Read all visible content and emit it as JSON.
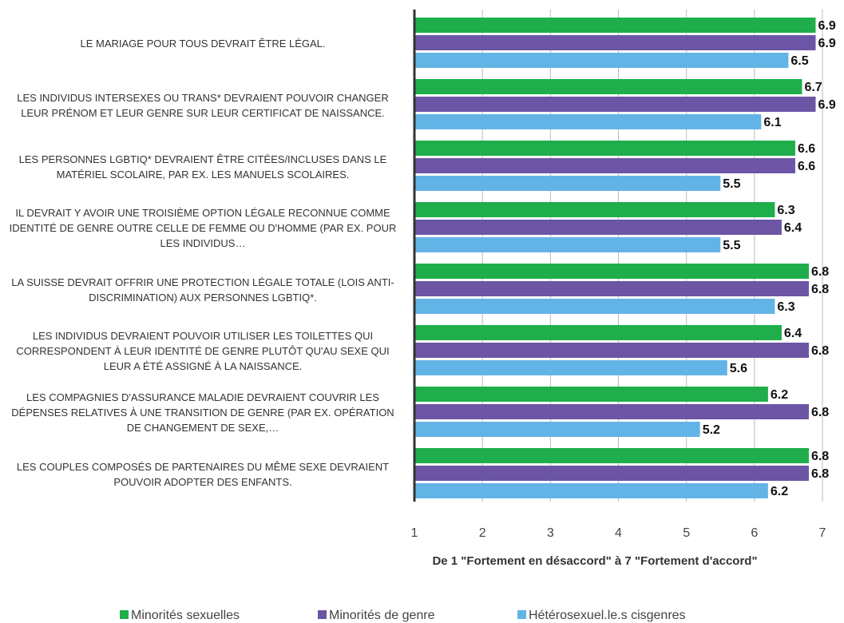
{
  "chart_data": {
    "type": "bar",
    "orientation": "horizontal",
    "xlabel": "De 1 \"Fortement en désaccord\" à 7 \"Fortement d'accord\"",
    "categories": [
      "LE MARIAGE POUR TOUS DEVRAIT ÊTRE LÉGAL.",
      "LES INDIVIDUS INTERSEXES OU TRANS* DEVRAIENT POUVOIR CHANGER LEUR PRÉNOM ET LEUR GENRE SUR LEUR CERTIFICAT DE NAISSANCE.",
      "LES PERSONNES LGBTIQ* DEVRAIENT ÊTRE CITÉES/INCLUSES DANS LE MATÉRIEL SCOLAIRE, PAR EX. LES MANUELS SCOLAIRES.",
      "IL DEVRAIT Y AVOIR UNE TROISIÈME OPTION LÉGALE RECONNUE COMME IDENTITÉ DE GENRE OUTRE CELLE DE FEMME OU D'HOMME (PAR EX. POUR LES INDIVIDUS…",
      "LA SUISSE DEVRAIT OFFRIR UNE PROTECTION LÉGALE TOTALE (LOIS ANTI-DISCRIMINATION) AUX PERSONNES LGBTIQ*.",
      "LES INDIVIDUS DEVRAIENT POUVOIR UTILISER LES TOILETTES QUI CORRESPONDENT À LEUR IDENTITÉ DE GENRE PLUTÔT QU'AU SEXE QUI LEUR A ÉTÉ ASSIGNÉ À LA NAISSANCE.",
      "LES COMPAGNIES D'ASSURANCE MALADIE DEVRAIENT COUVRIR LES DÉPENSES RELATIVES À UNE TRANSITION DE GENRE (PAR EX. OPÉRATION DE CHANGEMENT DE SEXE,…",
      "LES COUPLES COMPOSÉS DE PARTENAIRES DU MÊME SEXE DEVRAIENT POUVOIR ADOPTER DES ENFANTS."
    ],
    "series": [
      {
        "name": "Minorités sexuelles",
        "color": "#1fae4b",
        "values": [
          6.9,
          6.7,
          6.6,
          6.3,
          6.8,
          6.4,
          6.2,
          6.8
        ]
      },
      {
        "name": "Minorités de genre",
        "color": "#6b55a4",
        "values": [
          6.9,
          6.9,
          6.6,
          6.4,
          6.8,
          6.8,
          6.8,
          6.8
        ]
      },
      {
        "name": "Hétérosexuel.le.s cisgenres",
        "color": "#63b4e6",
        "values": [
          6.5,
          6.1,
          5.5,
          5.5,
          6.3,
          5.6,
          5.2,
          6.2
        ]
      }
    ],
    "xlim": [
      1,
      7
    ],
    "xticks": [
      1,
      2,
      3,
      4,
      5,
      6,
      7
    ],
    "grid": true,
    "legend": "bottom"
  }
}
